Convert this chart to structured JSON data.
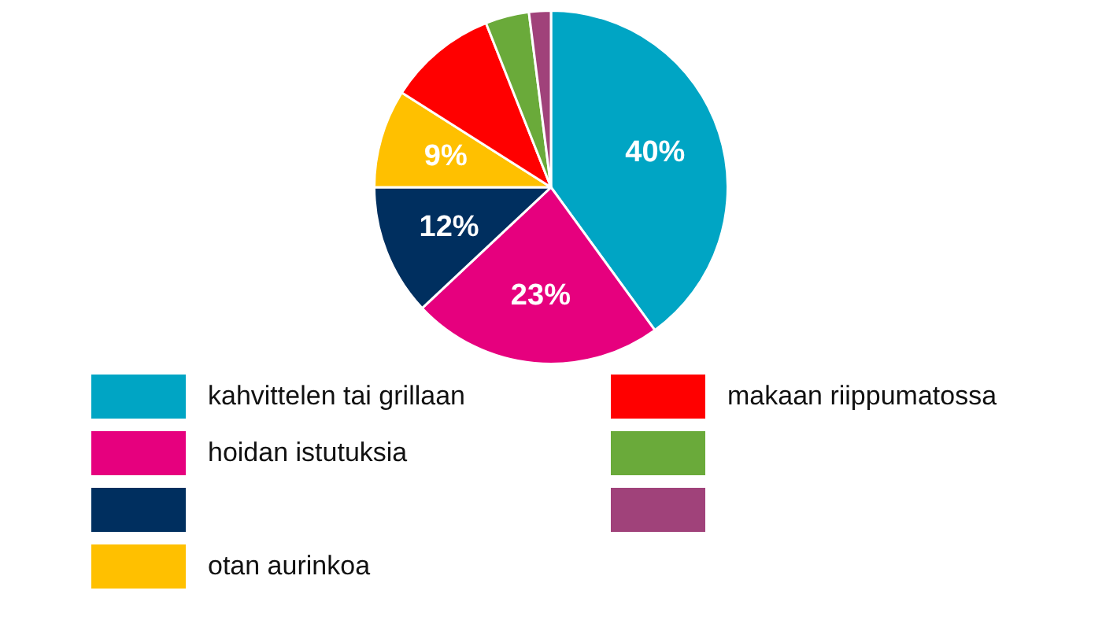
{
  "chart_data": {
    "type": "pie",
    "categories": [
      "kahvittelen tai grillaan",
      "hoidan istutuksia",
      null,
      "otan aurinkoa",
      "makaan riippumatossa",
      null,
      null
    ],
    "values": [
      40,
      23,
      12,
      9,
      10,
      4,
      2
    ],
    "colors": [
      "#00a5c4",
      "#e6007e",
      "#002f5f",
      "#ffc000",
      "#ff0000",
      "#6aaa3a",
      "#a0427a"
    ],
    "value_labels": [
      "40%",
      "23%",
      "12%",
      "9%",
      null,
      null,
      null
    ],
    "legend": "bottom"
  }
}
